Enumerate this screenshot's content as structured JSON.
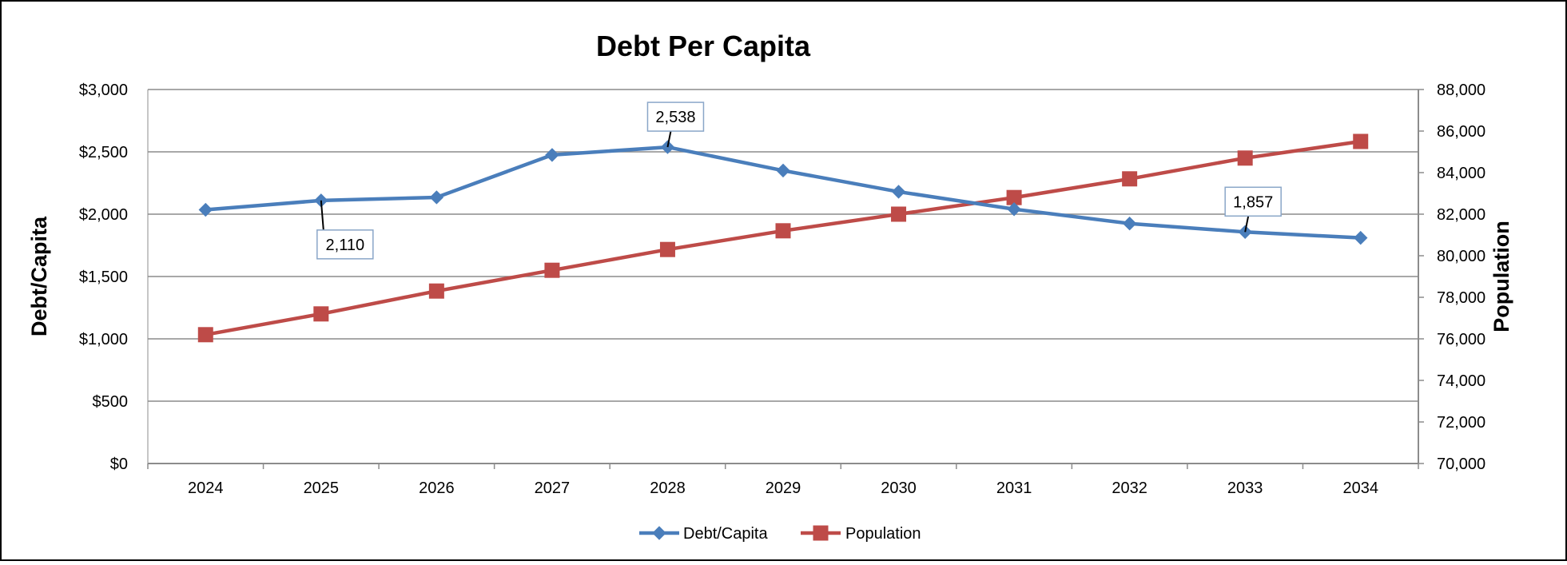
{
  "chart_data": {
    "type": "line",
    "title": "Debt Per Capita",
    "categories": [
      "2024",
      "2025",
      "2026",
      "2027",
      "2028",
      "2029",
      "2030",
      "2031",
      "2032",
      "2033",
      "2034"
    ],
    "y_left": {
      "label": "Debt/Capita",
      "range": [
        0,
        3000
      ],
      "ticks": [
        0,
        500,
        1000,
        1500,
        2000,
        2500,
        3000
      ],
      "tick_labels": [
        "$0",
        "$500",
        "$1,000",
        "$1,500",
        "$2,000",
        "$2,500",
        "$3,000"
      ]
    },
    "y_right": {
      "label": "Population",
      "range": [
        70000,
        88000
      ],
      "ticks": [
        70000,
        72000,
        74000,
        76000,
        78000,
        80000,
        82000,
        84000,
        86000,
        88000
      ],
      "tick_labels": [
        "70,000",
        "72,000",
        "74,000",
        "76,000",
        "78,000",
        "80,000",
        "82,000",
        "84,000",
        "86,000",
        "88,000"
      ]
    },
    "series": [
      {
        "name": "Debt/Capita",
        "axis": "left",
        "color": "#4a7ebb",
        "marker": "diamond",
        "values": [
          2035,
          2110,
          2135,
          2475,
          2538,
          2350,
          2180,
          2040,
          1925,
          1857,
          1810
        ]
      },
      {
        "name": "Population",
        "axis": "right",
        "color": "#be4b48",
        "marker": "square",
        "values": [
          76200,
          77200,
          78300,
          79300,
          80300,
          81200,
          82000,
          82800,
          83700,
          84700,
          85500
        ]
      }
    ],
    "annotations": [
      {
        "series": 0,
        "index": 1,
        "text": "2,110",
        "placement": "below-right"
      },
      {
        "series": 0,
        "index": 4,
        "text": "2,538",
        "placement": "above"
      },
      {
        "series": 0,
        "index": 9,
        "text": "1,857",
        "placement": "above"
      }
    ],
    "grid": true,
    "legend_position": "bottom"
  }
}
